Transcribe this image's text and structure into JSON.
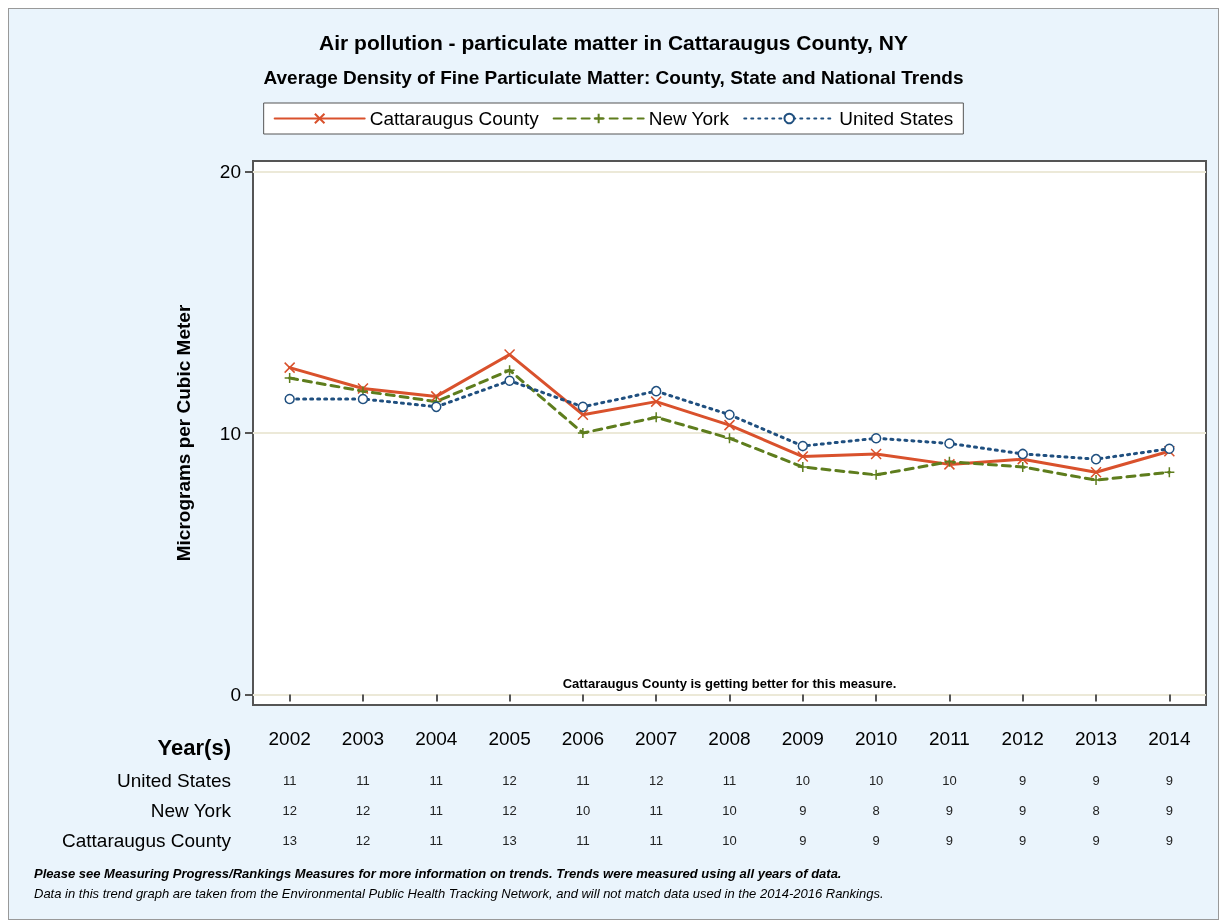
{
  "chart_data": {
    "type": "line",
    "title": "Air pollution - particulate matter in Cattaraugus County, NY",
    "subtitle": "Average Density of Fine Particulate Matter: County, State and National Trends",
    "xlabel": "Year(s)",
    "ylabel": "Micrograms per Cubic Meter",
    "categories": [
      "2002",
      "2003",
      "2004",
      "2005",
      "2006",
      "2007",
      "2008",
      "2009",
      "2010",
      "2011",
      "2012",
      "2013",
      "2014"
    ],
    "series": [
      {
        "name": "Cattaraugus County",
        "color": "#d9512c",
        "marker": "cross",
        "line_style": "solid",
        "values": [
          12.5,
          11.7,
          11.4,
          13.0,
          10.7,
          11.2,
          10.3,
          9.1,
          9.2,
          8.8,
          9.0,
          8.5,
          9.3
        ],
        "value_labels": [
          "13",
          "12",
          "11",
          "13",
          "11",
          "11",
          "10",
          "9",
          "9",
          "9",
          "9",
          "9",
          "9"
        ]
      },
      {
        "name": "New York",
        "color": "#5e7d1d",
        "marker": "plus",
        "line_style": "dashed",
        "values": [
          12.1,
          11.6,
          11.2,
          12.4,
          10.0,
          10.6,
          9.8,
          8.7,
          8.4,
          8.9,
          8.7,
          8.2,
          8.5
        ],
        "value_labels": [
          "12",
          "12",
          "11",
          "12",
          "10",
          "11",
          "10",
          "9",
          "8",
          "9",
          "9",
          "8",
          "9"
        ]
      },
      {
        "name": "United States",
        "color": "#1f4f7f",
        "marker": "circle",
        "line_style": "dotted",
        "values": [
          11.3,
          11.3,
          11.0,
          12.0,
          11.0,
          11.6,
          10.7,
          9.5,
          9.8,
          9.6,
          9.2,
          9.0,
          9.4
        ],
        "value_labels": [
          "11",
          "11",
          "11",
          "12",
          "11",
          "12",
          "11",
          "10",
          "10",
          "10",
          "9",
          "9",
          "9"
        ]
      }
    ],
    "ylim": [
      -0.4,
      20.4
    ],
    "yticks": [
      0,
      10,
      20
    ],
    "grid": "y",
    "legend": "top",
    "annotations": [
      "Cattaraugus County is getting better for this measure.",
      "Please see Measuring Progress/Rankings Measures for more information on trends. Trends were measured using all years of data.",
      "Data in this trend graph are taken from the Environmental Public Health Tracking Network, and will not match data used in the 2014-2016 Rankings."
    ]
  }
}
